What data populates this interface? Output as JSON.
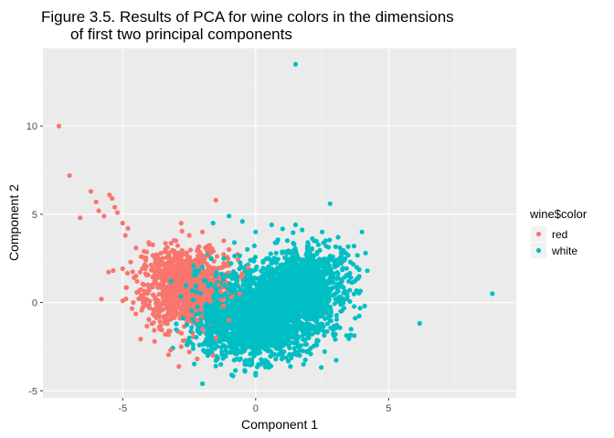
{
  "chart_data": {
    "type": "scatter",
    "title_line1": "Figure 3.5. Results of PCA for wine colors in the dimensions",
    "title_line2": "of first two principal components",
    "xlabel": "Component 1",
    "ylabel": "Component 2",
    "xlim": [
      -8.0,
      9.8
    ],
    "ylim": [
      -5.4,
      14.4
    ],
    "x_ticks": [
      -5,
      0,
      5
    ],
    "x_tick_labels": [
      "-5",
      "0",
      "5"
    ],
    "y_ticks": [
      -5,
      0,
      5,
      10
    ],
    "y_tick_labels": [
      "-5",
      "0",
      "5",
      "10"
    ],
    "grid": true,
    "legend": {
      "title": "wine$color",
      "placement": "right",
      "entries": [
        {
          "name": "red",
          "color": "#F8766D"
        },
        {
          "name": "white",
          "color": "#00BFC4"
        }
      ]
    },
    "series": [
      {
        "name": "red",
        "color": "#F8766D",
        "points": [
          [
            -7.4,
            10.0
          ],
          [
            -7.0,
            7.2
          ],
          [
            -6.6,
            4.8
          ],
          [
            -6.2,
            6.3
          ],
          [
            -6.0,
            5.7
          ],
          [
            -5.9,
            5.2
          ],
          [
            -5.7,
            4.9
          ],
          [
            -5.5,
            6.1
          ],
          [
            -5.4,
            5.9
          ],
          [
            -5.3,
            5.4
          ],
          [
            -5.2,
            5.1
          ],
          [
            -5.0,
            4.5
          ],
          [
            -4.9,
            3.8
          ],
          [
            -4.8,
            4.2
          ],
          [
            -4.5,
            3.1
          ],
          [
            -4.2,
            2.9
          ],
          [
            -4.0,
            3.3
          ],
          [
            -3.5,
            2.5
          ],
          [
            -3.0,
            3.5
          ],
          [
            -2.8,
            4.5
          ],
          [
            -1.5,
            5.8
          ],
          [
            -2.0,
            4.0
          ],
          [
            -2.5,
            3.8
          ],
          [
            -1.8,
            3.2
          ],
          [
            -1.2,
            3.5
          ],
          [
            -1.0,
            3.0
          ],
          [
            -5.8,
            0.2
          ],
          [
            -5.0,
            0.1
          ],
          [
            -4.6,
            0.0
          ],
          [
            -4.3,
            0.2
          ],
          [
            -4.0,
            -0.3
          ],
          [
            -3.8,
            -0.5
          ],
          [
            -3.6,
            -1.5
          ],
          [
            -3.4,
            -1.8
          ],
          [
            -3.8,
            -2.2
          ],
          [
            -3.2,
            -2.7
          ],
          [
            -2.5,
            -2.8
          ],
          [
            -2.8,
            -2.5
          ],
          [
            -2.2,
            -3.2
          ],
          [
            -1.6,
            -3.0
          ],
          [
            -1.0,
            -1.0
          ],
          [
            -0.6,
            0.5
          ],
          [
            -0.5,
            1.5
          ],
          [
            -0.3,
            2.0
          ],
          [
            -1.5,
            -2.0
          ],
          [
            -2.0,
            -1.5
          ],
          [
            -4.5,
            1.5
          ],
          [
            -4.2,
            1.0
          ],
          [
            -4.4,
            0.6
          ],
          [
            -3.0,
            1.8
          ],
          [
            -2.0,
            2.0
          ],
          [
            -1.4,
            1.0
          ],
          [
            -1.2,
            -0.2
          ],
          [
            -0.9,
            0.3
          ],
          [
            -3.3,
            -1.0
          ],
          [
            -2.2,
            -1.0
          ],
          [
            -4.7,
            2.3
          ],
          [
            -3.7,
            2.6
          ],
          [
            -1.7,
            2.8
          ],
          [
            -3.9,
            -1.2
          ]
        ]
      },
      {
        "name": "white",
        "color": "#00BFC4",
        "points": [
          [
            1.5,
            13.5
          ],
          [
            8.9,
            0.5
          ],
          [
            2.8,
            5.6
          ],
          [
            -1.0,
            4.9
          ],
          [
            -0.5,
            4.6
          ],
          [
            -1.6,
            4.5
          ],
          [
            0.6,
            4.4
          ],
          [
            1.5,
            4.4
          ],
          [
            4.0,
            4.0
          ],
          [
            2.5,
            4.0
          ],
          [
            3.1,
            3.7
          ],
          [
            3.7,
            3.2
          ],
          [
            2.2,
            3.5
          ],
          [
            0.0,
            4.0
          ],
          [
            -0.8,
            3.4
          ],
          [
            -2.0,
            2.0
          ],
          [
            -1.5,
            1.5
          ],
          [
            -2.3,
            1.8
          ],
          [
            -1.2,
            2.5
          ],
          [
            4.2,
            1.8
          ],
          [
            3.8,
            2.0
          ],
          [
            3.5,
            1.2
          ],
          [
            4.1,
            -0.2
          ],
          [
            3.9,
            0.6
          ],
          [
            3.2,
            -0.5
          ],
          [
            2.7,
            -1.2
          ],
          [
            2.0,
            -2.0
          ],
          [
            1.5,
            -2.8
          ],
          [
            0.5,
            -3.5
          ],
          [
            0.0,
            -4.0
          ],
          [
            -0.4,
            -3.9
          ],
          [
            -0.9,
            -4.1
          ],
          [
            -1.5,
            -3.6
          ],
          [
            -2.0,
            -4.6
          ],
          [
            -1.8,
            -3.0
          ],
          [
            -2.5,
            -2.0
          ],
          [
            -1.9,
            -2.8
          ],
          [
            -1.5,
            -1.5
          ],
          [
            -1.0,
            -0.6
          ],
          [
            -0.5,
            -0.2
          ],
          [
            1.0,
            -3.0
          ],
          [
            1.8,
            -3.5
          ],
          [
            2.3,
            -2.4
          ],
          [
            3.0,
            -1.8
          ],
          [
            -0.7,
            -2.9
          ],
          [
            1.2,
            2.8
          ],
          [
            2.9,
            2.6
          ],
          [
            -0.2,
            2.4
          ],
          [
            0.8,
            3.4
          ],
          [
            3.3,
            0.2
          ]
        ]
      }
    ],
    "clusters": [
      {
        "series": "red",
        "center": [
          -2.4,
          0.6
        ],
        "spread": [
          0.85,
          1.05
        ],
        "count": 900
      },
      {
        "series": "red",
        "center": [
          -2.9,
          1.6
        ],
        "spread": [
          0.7,
          0.8
        ],
        "count": 260
      },
      {
        "series": "white",
        "center": [
          0.2,
          -1.0
        ],
        "spread": [
          1.0,
          1.05
        ],
        "count": 1200
      },
      {
        "series": "white",
        "center": [
          1.5,
          0.7
        ],
        "spread": [
          0.75,
          0.85
        ],
        "count": 900
      },
      {
        "series": "white",
        "center": [
          0.6,
          0.0
        ],
        "spread": [
          1.3,
          1.3
        ],
        "count": 500
      },
      {
        "series": "white",
        "center": [
          -0.9,
          -1.5
        ],
        "spread": [
          0.7,
          0.8
        ],
        "count": 300
      },
      {
        "series": "white",
        "center": [
          2.2,
          1.6
        ],
        "spread": [
          0.8,
          0.9
        ],
        "count": 300
      }
    ]
  }
}
